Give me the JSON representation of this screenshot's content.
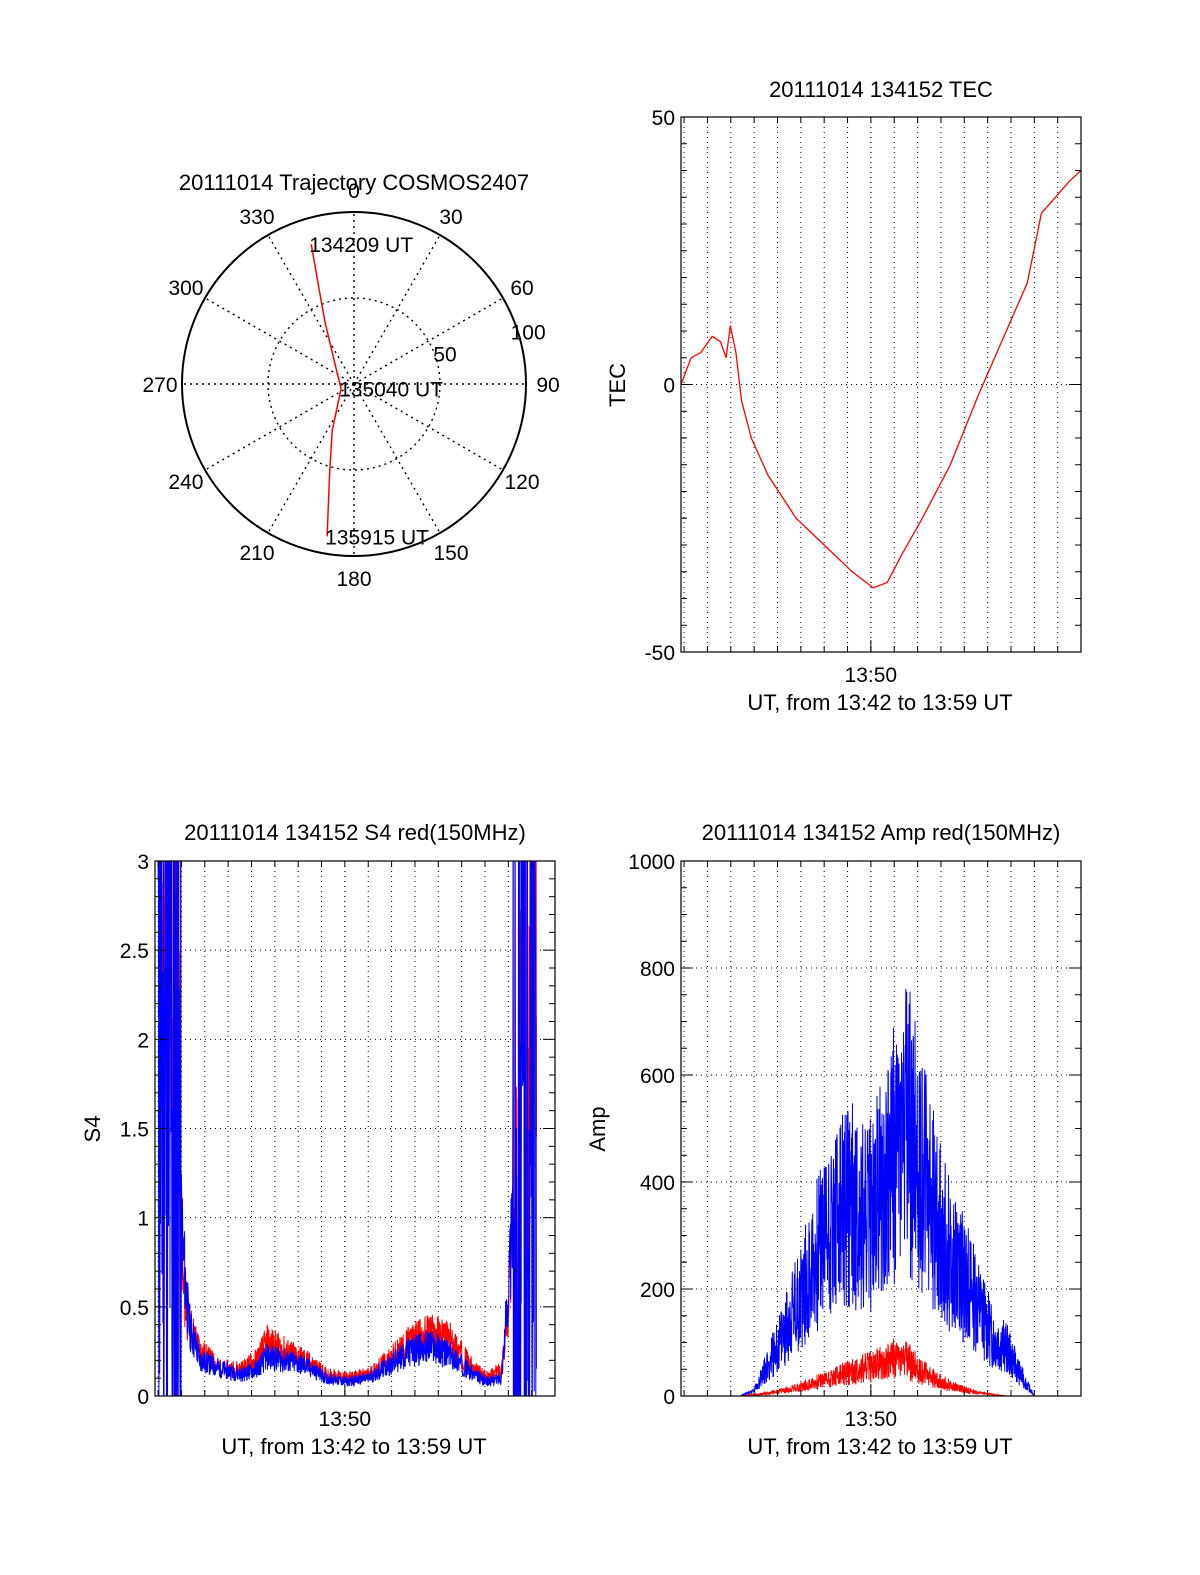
{
  "colors": {
    "red": "#ff0000",
    "blue": "#0000ff",
    "axis": "#000000",
    "grid": "#000000"
  },
  "chart_data": [
    {
      "id": "trajectory",
      "type": "polar",
      "title": "20111014 Trajectory COSMOS2407",
      "azimuth_labels": [
        "0",
        "30",
        "60",
        "90",
        "120",
        "150",
        "180",
        "210",
        "240",
        "270",
        "300",
        "330"
      ],
      "radial_labels": [
        "50",
        "100"
      ],
      "radial_values": [
        50,
        100
      ],
      "elevation_max": 100,
      "track": [
        {
          "azimuth": 343,
          "radius": 85
        },
        {
          "azimuth": 340,
          "radius": 60
        },
        {
          "azimuth": 335,
          "radius": 40
        },
        {
          "azimuth": 320,
          "radius": 18
        },
        {
          "azimuth": 250,
          "radius": 8
        },
        {
          "azimuth": 205,
          "radius": 30
        },
        {
          "azimuth": 195,
          "radius": 55
        },
        {
          "azimuth": 190,
          "radius": 90
        }
      ],
      "annotations": [
        {
          "text": "134209 UT",
          "azimuth": 343,
          "radius": 85
        },
        {
          "text": "135040 UT",
          "azimuth": 250,
          "radius": 8
        },
        {
          "text": "135915 UT",
          "azimuth": 190,
          "radius": 90
        }
      ]
    },
    {
      "id": "tec",
      "type": "line",
      "title": "20111014 134152 TEC",
      "ylabel": "TEC",
      "xlabel": "UT, from 13:42 to 13:59 UT",
      "xlim": [
        13.6978,
        13.9833
      ],
      "ylim": [
        -50,
        50
      ],
      "ytick_values": [
        -50,
        0,
        50
      ],
      "ytick_labels": [
        "-50",
        "0",
        "50"
      ],
      "xtick_values": [
        13.8333
      ],
      "xtick_labels": [
        "13:50"
      ],
      "series": [
        {
          "name": "TEC",
          "color": "#ff0000",
          "x": [
            13.6978,
            13.705,
            13.712,
            13.72,
            13.726,
            13.73,
            13.733,
            13.737,
            13.741,
            13.748,
            13.76,
            13.78,
            13.8,
            13.82,
            13.835,
            13.845,
            13.855,
            13.87,
            13.89,
            13.91,
            13.93,
            13.945,
            13.955,
            13.965,
            13.975,
            13.9833
          ],
          "y": [
            0,
            5,
            6,
            9,
            8,
            5,
            11,
            6,
            -3,
            -10,
            -17,
            -25,
            -30,
            -35,
            -38,
            -37,
            -32,
            -25,
            -15,
            -2,
            10,
            19,
            32,
            35,
            38,
            40
          ]
        }
      ]
    },
    {
      "id": "s4",
      "type": "line",
      "title": "20111014 134152 S4 red(150MHz)",
      "ylabel": "S4",
      "xlabel": "UT, from 13:42 to 13:59 UT",
      "xlim": [
        13.6978,
        13.9833
      ],
      "ylim": [
        0,
        3
      ],
      "ytick_values": [
        0,
        0.5,
        1,
        1.5,
        2,
        2.5,
        3
      ],
      "ytick_labels": [
        "0",
        "0.5",
        "1",
        "1.5",
        "2",
        "2.5",
        "3"
      ],
      "xtick_values": [
        13.8333
      ],
      "xtick_labels": [
        "13:50"
      ],
      "series": [
        {
          "name": "red",
          "color": "#ff0000",
          "x": [
            13.7,
            13.713,
            13.718,
            13.722,
            13.73,
            13.745,
            13.76,
            13.77,
            13.778,
            13.79,
            13.805,
            13.82,
            13.835,
            13.85,
            13.865,
            13.88,
            13.895,
            13.91,
            13.925,
            13.935,
            13.945,
            13.95,
            13.955,
            13.96,
            13.97
          ],
          "y": [
            2.5,
            2.0,
            0.6,
            0.4,
            0.25,
            0.15,
            0.15,
            0.2,
            0.3,
            0.25,
            0.2,
            0.12,
            0.1,
            0.12,
            0.2,
            0.3,
            0.35,
            0.3,
            0.15,
            0.1,
            0.15,
            0.5,
            1.3,
            2.5,
            2.5
          ]
        },
        {
          "name": "blue",
          "color": "#0000ff",
          "x": [
            13.7,
            13.713,
            13.718,
            13.722,
            13.73,
            13.745,
            13.76,
            13.77,
            13.778,
            13.79,
            13.805,
            13.82,
            13.835,
            13.85,
            13.865,
            13.88,
            13.895,
            13.91,
            13.925,
            13.935,
            13.945,
            13.95,
            13.955,
            13.96,
            13.97
          ],
          "y": [
            2.0,
            1.5,
            0.8,
            0.4,
            0.2,
            0.15,
            0.12,
            0.15,
            0.22,
            0.2,
            0.17,
            0.1,
            0.08,
            0.1,
            0.17,
            0.25,
            0.28,
            0.22,
            0.12,
            0.08,
            0.1,
            0.6,
            1.2,
            1.5,
            1.2
          ]
        }
      ]
    },
    {
      "id": "amp",
      "type": "line",
      "title": "20111014 134152 Amp red(150MHz)",
      "ylabel": "Amp",
      "xlabel": "UT, from 13:42 to 13:59 UT",
      "xlim": [
        13.6978,
        13.9833
      ],
      "ylim": [
        0,
        1000
      ],
      "ytick_values": [
        0,
        200,
        400,
        600,
        800,
        1000
      ],
      "ytick_labels": [
        "0",
        "200",
        "400",
        "600",
        "800",
        "1000"
      ],
      "xtick_values": [
        13.8333
      ],
      "xtick_labels": [
        "13:50"
      ],
      "series": [
        {
          "name": "blue",
          "color": "#0000ff",
          "x": [
            13.6978,
            13.74,
            13.75,
            13.76,
            13.77,
            13.78,
            13.79,
            13.8,
            13.81,
            13.82,
            13.83,
            13.84,
            13.85,
            13.86,
            13.87,
            13.88,
            13.89,
            13.9,
            13.91,
            13.92,
            13.93,
            13.94,
            13.95,
            13.9833
          ],
          "y": [
            0,
            0,
            10,
            60,
            110,
            170,
            230,
            300,
            330,
            360,
            320,
            380,
            450,
            500,
            420,
            330,
            260,
            220,
            170,
            110,
            90,
            40,
            0,
            0
          ]
        },
        {
          "name": "red",
          "color": "#ff0000",
          "x": [
            13.6978,
            13.74,
            13.76,
            13.78,
            13.8,
            13.82,
            13.84,
            13.85,
            13.86,
            13.87,
            13.88,
            13.89,
            13.9,
            13.91,
            13.92,
            13.93,
            13.9833
          ],
          "y": [
            0,
            0,
            5,
            15,
            30,
            45,
            60,
            70,
            65,
            45,
            30,
            20,
            12,
            6,
            3,
            0,
            0
          ]
        }
      ]
    }
  ]
}
